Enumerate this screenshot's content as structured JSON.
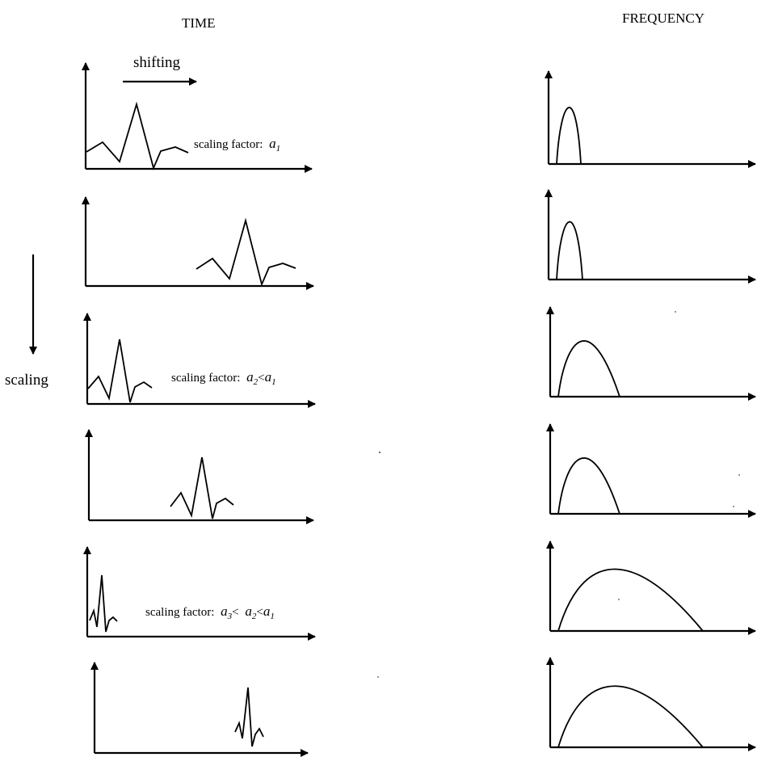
{
  "headers": {
    "time": "TIME",
    "frequency": "FREQUENCY"
  },
  "labels": {
    "shifting": "shifting",
    "scaling": "scaling",
    "scaling_factor_prefix": "scaling factor:",
    "lt": "<",
    "a": "a",
    "sub1": "1",
    "sub2": "2",
    "sub3": "3"
  }
}
